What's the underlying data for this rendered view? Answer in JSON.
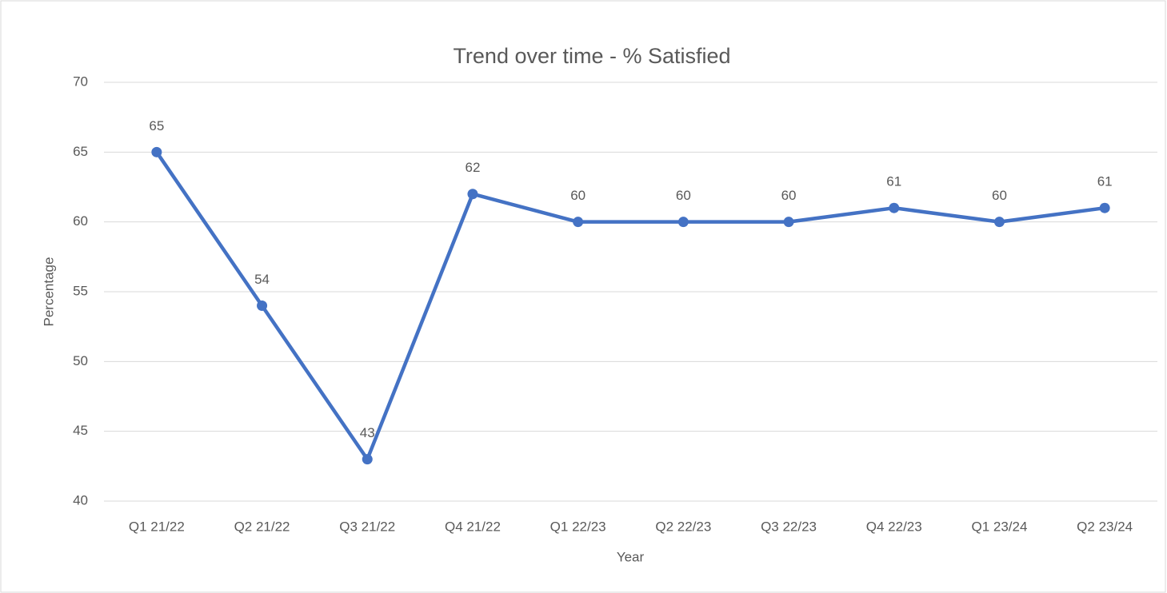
{
  "chart_data": {
    "type": "line",
    "title": "Trend over time - % Satisfied",
    "x_label": "Year",
    "y_label": "Percentage",
    "categories": [
      "Q1 21/22",
      "Q2 21/22",
      "Q3 21/22",
      "Q4 21/22",
      "Q1 22/23",
      "Q2 22/23",
      "Q3 22/23",
      "Q4 22/23",
      "Q1 23/24",
      "Q2 23/24"
    ],
    "series": [
      {
        "name": "% Satisfied",
        "color": "#4472c4",
        "values": [
          65,
          54,
          43,
          62,
          60,
          60,
          60,
          61,
          60,
          61
        ]
      }
    ],
    "ylim": [
      40,
      70
    ],
    "yticks": [
      40,
      45,
      50,
      55,
      60,
      65,
      70
    ],
    "grid": true,
    "data_labels": true
  }
}
